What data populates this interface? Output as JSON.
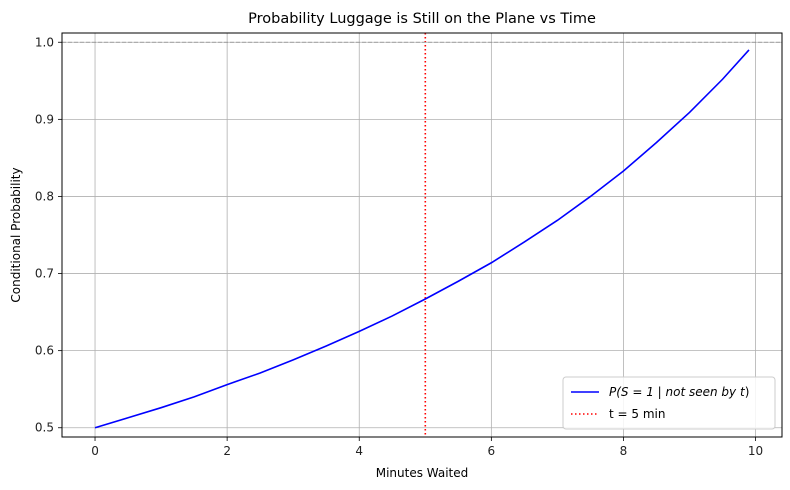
{
  "chart_data": {
    "type": "line",
    "title": "Probability Luggage is Still on the Plane vs Time",
    "xlabel": "Minutes Waited",
    "ylabel": "Conditional Probability",
    "xlim": [
      -0.5,
      10.4
    ],
    "ylim": [
      0.488,
      1.012
    ],
    "xticks": [
      0,
      2,
      4,
      6,
      8,
      10
    ],
    "xtick_labels": [
      "0",
      "2",
      "4",
      "6",
      "8",
      "10"
    ],
    "yticks": [
      0.5,
      0.6,
      0.7,
      0.8,
      0.9,
      1.0
    ],
    "ytick_labels": [
      "0.5",
      "0.6",
      "0.7",
      "0.8",
      "0.9",
      "1.0"
    ],
    "grid": true,
    "legend_position": "lower-right",
    "series": [
      {
        "name": "P(S = 1 | not seen by t)",
        "color": "#0000ff",
        "style": "solid",
        "x": [
          0,
          0.5,
          1,
          1.5,
          2,
          2.5,
          3,
          3.5,
          4,
          4.5,
          5,
          5.5,
          6,
          6.5,
          7,
          7.5,
          8,
          8.5,
          9,
          9.5,
          9.9
        ],
        "y": [
          0.5,
          0.513,
          0.526,
          0.54,
          0.556,
          0.571,
          0.588,
          0.606,
          0.625,
          0.645,
          0.667,
          0.69,
          0.714,
          0.741,
          0.769,
          0.8,
          0.833,
          0.87,
          0.909,
          0.952,
          0.99
        ]
      }
    ],
    "reference_lines": [
      {
        "orientation": "vertical",
        "x": 5,
        "color": "#ff0000",
        "style": "dotted",
        "label": "t = 5 min"
      },
      {
        "orientation": "horizontal",
        "y": 1.0,
        "color": "#888888",
        "style": "dashed",
        "label": ""
      }
    ],
    "legend": {
      "entries": [
        {
          "label_pre": "P(S = 1 | not seen by ",
          "label_var": "t",
          "label_post": ")",
          "color": "#0000ff",
          "style": "solid"
        },
        {
          "label": "t = 5 min",
          "color": "#ff0000",
          "style": "dotted"
        }
      ]
    }
  }
}
